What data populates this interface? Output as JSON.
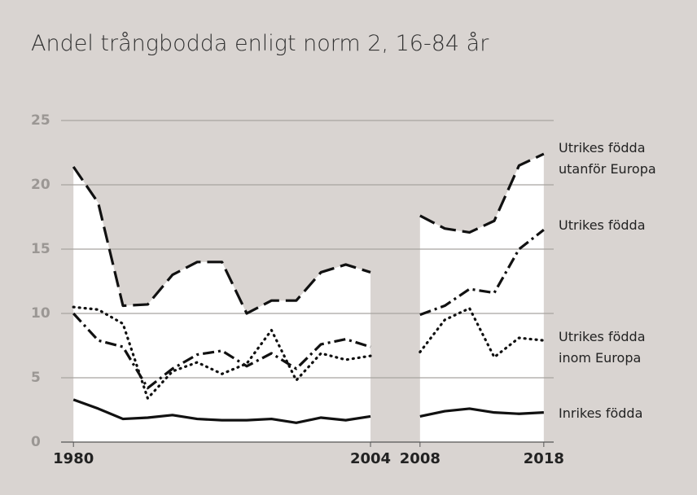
{
  "chart_data": {
    "type": "line",
    "title": "Andel trångbodda enligt norm 2, 16-84 år",
    "x": [
      1980,
      1982,
      1984,
      1986,
      1988,
      1990,
      1992,
      1994,
      1996,
      1998,
      2000,
      2002,
      2004,
      2006,
      2008,
      2010,
      2012,
      2014,
      2016,
      2018
    ],
    "series": [
      {
        "name": "Utrikes födda utanför Europa",
        "color": "#111111",
        "values": [
          21.4,
          18.6,
          10.6,
          10.7,
          13,
          14,
          14,
          10,
          11,
          11,
          13.2,
          13.8,
          13.2,
          null,
          17.6,
          16.6,
          16.3,
          17.2,
          21.5,
          22.4
        ]
      },
      {
        "name": "Utrikes födda",
        "color": "#111111",
        "values": [
          10.0,
          7.9,
          7.4,
          4.2,
          5.7,
          6.8,
          7.1,
          5.9,
          6.9,
          5.7,
          7.6,
          8.0,
          7.4,
          null,
          9.9,
          10.6,
          11.9,
          11.6,
          15.0,
          16.5
        ]
      },
      {
        "name": "Utrikes födda inom Europa",
        "color": "#111111",
        "values": [
          10.5,
          10.3,
          9.2,
          3.4,
          5.5,
          6.2,
          5.3,
          6.1,
          8.7,
          4.8,
          6.9,
          6.4,
          6.7,
          null,
          7.0,
          9.5,
          10.4,
          6.6,
          8.1,
          7.9
        ]
      },
      {
        "name": "Inrikes födda",
        "color": "#111111",
        "values": [
          3.3,
          2.6,
          1.8,
          1.9,
          2.1,
          1.8,
          1.7,
          1.7,
          1.8,
          1.5,
          1.9,
          1.7,
          2.0,
          null,
          2.0,
          2.4,
          2.6,
          2.3,
          2.2,
          2.3
        ]
      }
    ],
    "xlim": [
      1979,
      2018.8
    ],
    "xticks": [
      1980,
      2004,
      2008,
      2018
    ],
    "ylim": [
      0,
      25
    ],
    "yticks": [
      0,
      5,
      10,
      15,
      20,
      25
    ],
    "grid": true
  }
}
